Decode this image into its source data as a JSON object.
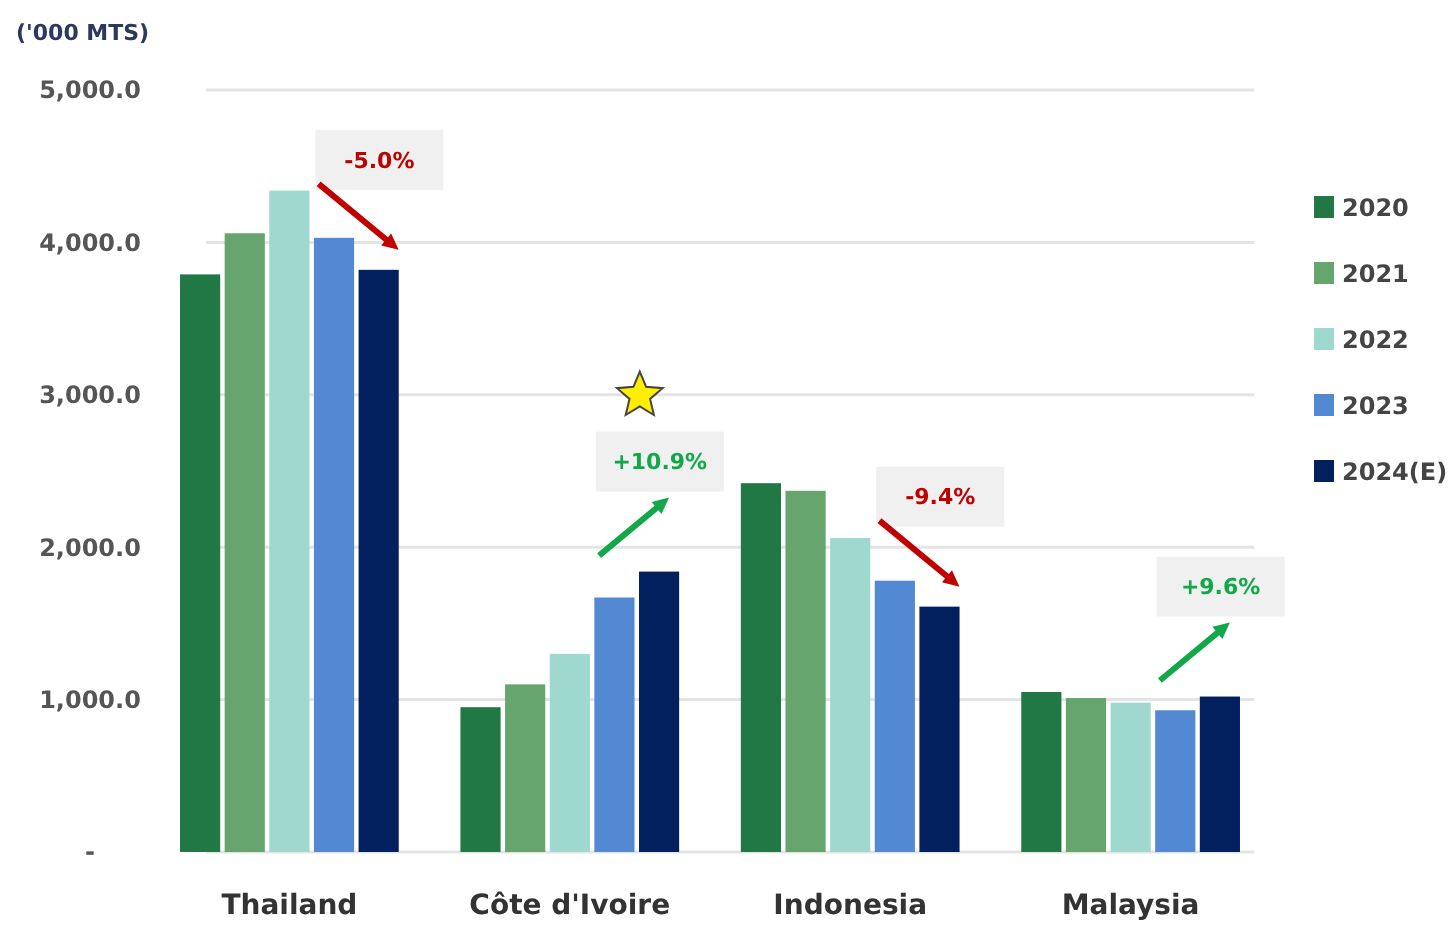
{
  "chart_data": {
    "type": "bar",
    "ylabel": "('000 MTS)",
    "categories": [
      "Thailand",
      "Côte d'Ivoire",
      "Indonesia",
      "Malaysia"
    ],
    "series": [
      {
        "name": "2020",
        "color": "#217844",
        "values": [
          3790,
          950,
          2420,
          1050
        ]
      },
      {
        "name": "2021",
        "color": "#66a66e",
        "values": [
          4060,
          1100,
          2370,
          1010
        ]
      },
      {
        "name": "2022",
        "color": "#9ed8cf",
        "values": [
          4340,
          1300,
          2060,
          980
        ]
      },
      {
        "name": "2023",
        "color": "#5289d2",
        "values": [
          4030,
          1670,
          1780,
          930
        ]
      },
      {
        "name": "2024(E)",
        "color": "#02205e",
        "values": [
          3820,
          1840,
          1610,
          1020
        ]
      }
    ],
    "ylim": [
      0,
      5000
    ],
    "yticks": [
      {
        "value": 0,
        "label": "-"
      },
      {
        "value": 1000,
        "label": "1,000.0"
      },
      {
        "value": 2000,
        "label": "2,000.0"
      },
      {
        "value": 3000,
        "label": "3,000.0"
      },
      {
        "value": 4000,
        "label": "4,000.0"
      },
      {
        "value": 5000,
        "label": "5,000.0"
      }
    ],
    "grid": "y",
    "legend": "right",
    "annotations": [
      "-5.0%",
      "+10.9%",
      "-9.4%",
      "+9.6%"
    ]
  }
}
